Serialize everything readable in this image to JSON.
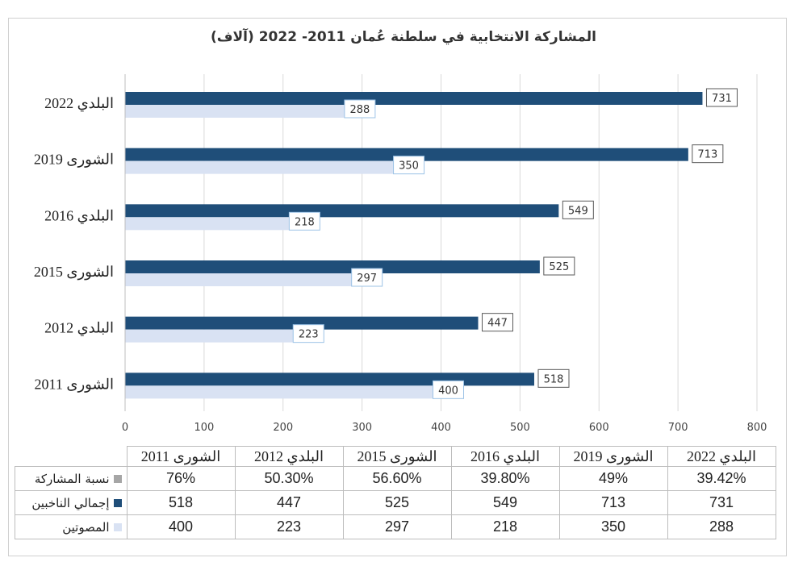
{
  "chart_data": {
    "type": "bar",
    "orientation": "horizontal",
    "title": "المشاركة الانتخابية في سلطنة عُمان 2011- 2022 (آلاف)",
    "categories": [
      "الشورى 2011",
      "البلدي 2012",
      "الشورى 2015",
      "البلدي 2016",
      "الشورى 2019",
      "البلدي 2022"
    ],
    "category_labels_axis": [
      "الشورى 2011",
      "البلدي 2012",
      "الشورى 2015",
      "البلدي 2016",
      "الشورى 2019",
      "البلدي 2022"
    ],
    "series": [
      {
        "name": "إجمالي الناخبين",
        "values": [
          518,
          447,
          525,
          549,
          713,
          731
        ],
        "color": "#1f4e79"
      },
      {
        "name": "المصوتين",
        "values": [
          400,
          223,
          297,
          218,
          350,
          288
        ],
        "color": "#d9e2f3"
      }
    ],
    "xlim": [
      0,
      800
    ],
    "xticks": [
      0,
      100,
      200,
      300,
      400,
      500,
      600,
      700,
      800
    ],
    "grid": true,
    "data_table": {
      "header": [
        "الشورى 2011",
        "البلدي 2012",
        "الشورى 2015",
        "البلدي 2016",
        "الشورى 2019",
        "البلدي 2022"
      ],
      "rows": [
        {
          "label": "نسبة المشاركة",
          "color": "#a6a6a6",
          "values": [
            "76%",
            "50.30%",
            "56.60%",
            "39.80%",
            "49%",
            "39.42%"
          ]
        },
        {
          "label": "إجمالي الناخبين",
          "color": "#1f4e79",
          "values": [
            "518",
            "447",
            "525",
            "549",
            "713",
            "731"
          ]
        },
        {
          "label": "المصوتين",
          "color": "#d9e2f3",
          "values": [
            "400",
            "223",
            "297",
            "218",
            "350",
            "288"
          ]
        }
      ]
    }
  }
}
